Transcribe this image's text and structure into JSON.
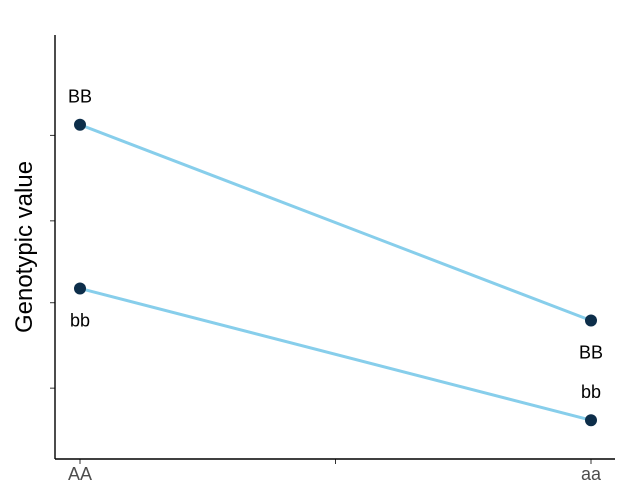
{
  "chart_data": {
    "type": "line",
    "title": "",
    "xlabel": "",
    "ylabel": "Genotypic value",
    "categories": [
      "AA",
      "aa"
    ],
    "ylim": [
      0,
      100
    ],
    "y_ticks": [
      14,
      38,
      61,
      85
    ],
    "x_mid_tick": true,
    "grid": false,
    "legend": "none",
    "series": [
      {
        "values": [
          88,
          33
        ],
        "point_labels": [
          "BB",
          "BB"
        ],
        "label_positions": [
          "above",
          "below"
        ]
      },
      {
        "values": [
          42,
          5
        ],
        "point_labels": [
          "bb",
          "bb"
        ],
        "label_positions": [
          "below",
          "above"
        ]
      }
    ],
    "colors": {
      "line": "#87ceeb",
      "point": "#0d2e4a"
    }
  }
}
